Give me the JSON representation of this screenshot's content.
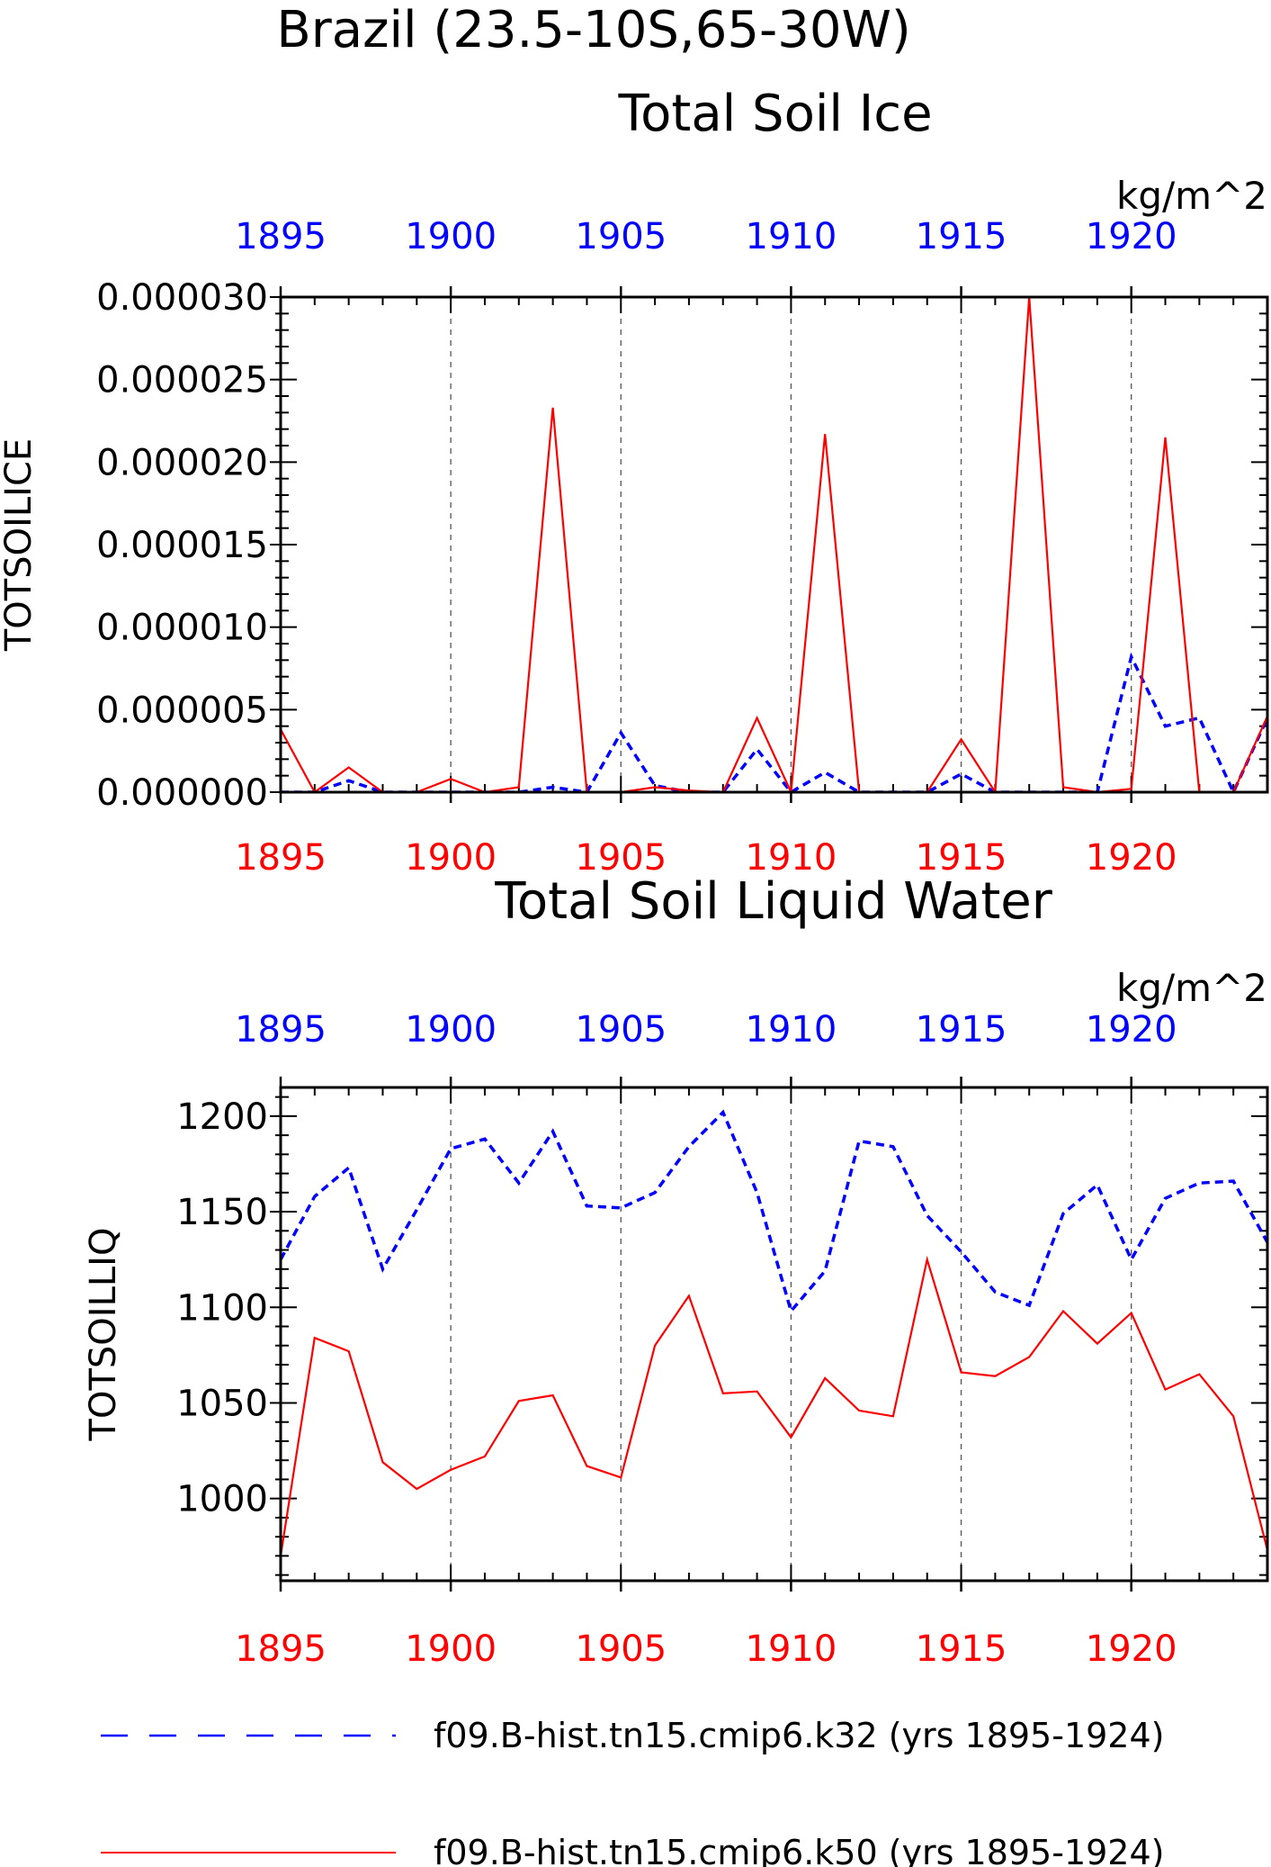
{
  "figure": {
    "title": "Brazil (23.5-10S,65-30W)",
    "colors": {
      "k32": "#0000ff",
      "k50": "#ff0000",
      "axis": "#000000",
      "grid": "#555555"
    }
  },
  "legend": {
    "entries": [
      {
        "name": "f09.B-hist.tn15.cmip6.k32 (yrs 1895-1924)",
        "color": "#0000ff",
        "style": "dashed"
      },
      {
        "name": "f09.B-hist.tn15.cmip6.k50 (yrs 1895-1924)",
        "color": "#ff0000",
        "style": "solid"
      }
    ]
  },
  "chart_data": [
    {
      "type": "line",
      "title": "Total Soil Ice",
      "units": "kg/m^2",
      "ylabel": "TOTSOILICE",
      "xlim": [
        1895,
        1924
      ],
      "ylim": [
        0,
        3e-05
      ],
      "grid": "vertical dashed at major x ticks",
      "top_axis": {
        "ticks": [
          1895,
          1900,
          1905,
          1910,
          1915,
          1920
        ],
        "labels": [
          "1895",
          "1900",
          "1905",
          "1910",
          "1915",
          "1920"
        ],
        "color": "#0000ff"
      },
      "bottom_axis": {
        "ticks": [
          1895,
          1900,
          1905,
          1910,
          1915,
          1920
        ],
        "labels": [
          "1895",
          "1900",
          "1905",
          "1910",
          "1915",
          "1920"
        ],
        "color": "#ff0000"
      },
      "y_ticks": [
        0,
        5e-06,
        1e-05,
        1.5e-05,
        2e-05,
        2.5e-05,
        3e-05
      ],
      "y_tick_labels": [
        "0.000000",
        "0.000005",
        "0.000010",
        "0.000015",
        "0.000020",
        "0.000025",
        "0.000030"
      ],
      "x": [
        1895,
        1896,
        1897,
        1898,
        1899,
        1900,
        1901,
        1902,
        1903,
        1904,
        1905,
        1906,
        1907,
        1908,
        1909,
        1910,
        1911,
        1912,
        1913,
        1914,
        1915,
        1916,
        1917,
        1918,
        1919,
        1920,
        1921,
        1922,
        1923,
        1924
      ],
      "series": [
        {
          "name": "f09.B-hist.tn15.cmip6.k32",
          "color": "#0000ff",
          "style": "dashed",
          "values": [
            0,
            0,
            7e-07,
            0,
            0,
            0,
            0,
            0,
            3e-07,
            0,
            3.6e-06,
            4e-07,
            0,
            0,
            2.6e-06,
            0,
            1.2e-06,
            0,
            0,
            0,
            1.1e-06,
            0,
            0,
            0,
            0,
            8.2e-06,
            4e-06,
            4.5e-06,
            0,
            4.5e-06
          ]
        },
        {
          "name": "f09.B-hist.tn15.cmip6.k50",
          "color": "#ff0000",
          "style": "solid",
          "values": [
            3.8e-06,
            0,
            1.5e-06,
            0,
            0,
            8e-07,
            0,
            3e-07,
            2.33e-05,
            0,
            0,
            3e-07,
            1e-07,
            0,
            4.5e-06,
            0,
            2.17e-05,
            0,
            0,
            0,
            3.2e-06,
            0,
            3e-05,
            3e-07,
            0,
            2e-07,
            2.15e-05,
            0,
            0,
            4.6e-06
          ]
        }
      ]
    },
    {
      "type": "line",
      "title": "Total Soil Liquid Water",
      "units": "kg/m^2",
      "ylabel": "TOTSOILLIQ",
      "xlim": [
        1895,
        1924
      ],
      "ylim": [
        957,
        1215
      ],
      "grid": "vertical dashed at major x ticks",
      "top_axis": {
        "ticks": [
          1895,
          1900,
          1905,
          1910,
          1915,
          1920
        ],
        "labels": [
          "1895",
          "1900",
          "1905",
          "1910",
          "1915",
          "1920"
        ],
        "color": "#0000ff"
      },
      "bottom_axis": {
        "ticks": [
          1895,
          1900,
          1905,
          1910,
          1915,
          1920
        ],
        "labels": [
          "1895",
          "1900",
          "1905",
          "1910",
          "1915",
          "1920"
        ],
        "color": "#ff0000"
      },
      "y_ticks": [
        1000,
        1050,
        1100,
        1150,
        1200
      ],
      "y_tick_labels": [
        "1000",
        "1050",
        "1100",
        "1150",
        "1200"
      ],
      "x": [
        1895,
        1896,
        1897,
        1898,
        1899,
        1900,
        1901,
        1902,
        1903,
        1904,
        1905,
        1906,
        1907,
        1908,
        1909,
        1910,
        1911,
        1912,
        1913,
        1914,
        1915,
        1916,
        1917,
        1918,
        1919,
        1920,
        1921,
        1922,
        1923,
        1924
      ],
      "series": [
        {
          "name": "f09.B-hist.tn15.cmip6.k32",
          "color": "#0000ff",
          "style": "dashed",
          "values": [
            1125,
            1158,
            1173,
            1120,
            1151,
            1183,
            1188,
            1165,
            1192,
            1153,
            1152,
            1160,
            1184,
            1202,
            1160,
            1098,
            1119,
            1187,
            1184,
            1148,
            1129,
            1108,
            1101,
            1149,
            1164,
            1125,
            1157,
            1165,
            1166,
            1134
          ]
        },
        {
          "name": "f09.B-hist.tn15.cmip6.k50",
          "color": "#ff0000",
          "style": "solid",
          "values": [
            970,
            1084,
            1077,
            1019,
            1005,
            1015,
            1022,
            1051,
            1054,
            1017,
            1011,
            1080,
            1106,
            1055,
            1056,
            1032,
            1063,
            1046,
            1043,
            1125,
            1066,
            1064,
            1074,
            1098,
            1081,
            1097,
            1057,
            1065,
            1043,
            973
          ]
        }
      ]
    }
  ]
}
